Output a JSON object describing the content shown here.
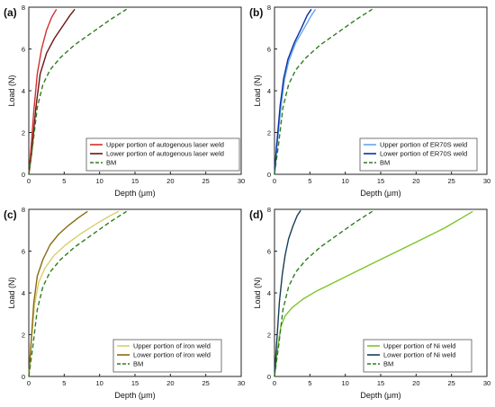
{
  "chart_data": [
    {
      "panel": "(a)",
      "type": "line",
      "xlabel": "Depth (μm)",
      "ylabel": "Load (N)",
      "xlim": [
        0,
        30
      ],
      "ylim": [
        0,
        8
      ],
      "xticks": [
        0,
        5,
        10,
        15,
        20,
        25,
        30
      ],
      "yticks": [
        0,
        2,
        4,
        6,
        8
      ],
      "grid": false,
      "legend_position": "bottom-right",
      "series": [
        {
          "name": "Upper portion of autogenous laser weld",
          "color": "#d32f2f",
          "dash": "solid",
          "x": [
            0,
            0.3,
            0.7,
            1.2,
            1.8,
            2.5,
            3.2,
            3.9
          ],
          "y": [
            0,
            1.2,
            3.0,
            4.8,
            6.0,
            6.9,
            7.5,
            7.9
          ]
        },
        {
          "name": "Lower portion of autogenous laser weld",
          "color": "#6b1414",
          "dash": "solid",
          "x": [
            0,
            0.4,
            1.0,
            1.6,
            2.5,
            3.6,
            4.8,
            5.8,
            6.5
          ],
          "y": [
            0,
            1.0,
            3.2,
            4.8,
            5.8,
            6.5,
            7.1,
            7.6,
            7.9
          ]
        },
        {
          "name": "BM",
          "color": "#2e7d1e",
          "dash": "dashed",
          "x": [
            0,
            0.6,
            1.2,
            2.0,
            3.0,
            4.5,
            6.5,
            9.0,
            11.5,
            13.8
          ],
          "y": [
            0,
            1.5,
            3.2,
            4.3,
            5.0,
            5.6,
            6.2,
            6.8,
            7.4,
            7.9
          ]
        }
      ]
    },
    {
      "panel": "(b)",
      "type": "line",
      "xlabel": "Depth (μm)",
      "ylabel": "Load (N)",
      "xlim": [
        0,
        30
      ],
      "ylim": [
        0,
        8
      ],
      "xticks": [
        0,
        5,
        10,
        15,
        20,
        25,
        30
      ],
      "yticks": [
        0,
        2,
        4,
        6,
        8
      ],
      "grid": false,
      "legend_position": "bottom-right",
      "series": [
        {
          "name": "Upper portion of ER70S weld",
          "color": "#64a8e6",
          "dash": "solid",
          "x": [
            0,
            0.4,
            0.9,
            1.4,
            2.0,
            3.0,
            4.2,
            5.2,
            5.8
          ],
          "y": [
            0,
            1.5,
            3.2,
            4.5,
            5.4,
            6.3,
            7.0,
            7.6,
            7.9
          ]
        },
        {
          "name": "Lower portion of ER70S weld",
          "color": "#0d2fa8",
          "dash": "solid",
          "x": [
            0,
            0.3,
            0.8,
            1.3,
            1.9,
            2.8,
            3.8,
            4.6,
            5.2
          ],
          "y": [
            0,
            1.4,
            3.3,
            4.6,
            5.5,
            6.3,
            7.0,
            7.6,
            7.9
          ]
        },
        {
          "name": "BM",
          "color": "#2e7d1e",
          "dash": "dashed",
          "x": [
            0,
            0.6,
            1.2,
            2.0,
            3.0,
            4.5,
            6.5,
            9.0,
            11.5,
            13.8
          ],
          "y": [
            0,
            1.5,
            3.2,
            4.3,
            5.0,
            5.6,
            6.2,
            6.8,
            7.4,
            7.9
          ]
        }
      ]
    },
    {
      "panel": "(c)",
      "type": "line",
      "xlabel": "Depth (μm)",
      "ylabel": "Load (N)",
      "xlim": [
        0,
        30
      ],
      "ylim": [
        0,
        8
      ],
      "xticks": [
        0,
        5,
        10,
        15,
        20,
        25,
        30
      ],
      "yticks": [
        0,
        2,
        4,
        6,
        8
      ],
      "grid": false,
      "legend_position": "bottom-right",
      "series": [
        {
          "name": "Upper portion of iron weld",
          "color": "#d6d06a",
          "dash": "solid",
          "x": [
            0,
            0.3,
            0.8,
            1.4,
            2.3,
            3.6,
            5.2,
            7.2,
            9.5,
            11.5,
            12.7
          ],
          "y": [
            0,
            1.5,
            3.4,
            4.5,
            5.2,
            5.8,
            6.3,
            6.8,
            7.3,
            7.7,
            7.9
          ]
        },
        {
          "name": "Lower portion of iron weld",
          "color": "#8a6a10",
          "dash": "solid",
          "x": [
            0,
            0.3,
            0.7,
            1.2,
            2.0,
            3.0,
            4.2,
            5.5,
            7.0,
            8.3
          ],
          "y": [
            0,
            1.5,
            3.5,
            4.8,
            5.6,
            6.3,
            6.8,
            7.2,
            7.6,
            7.9
          ]
        },
        {
          "name": "BM",
          "color": "#2e7d1e",
          "dash": "dashed",
          "x": [
            0,
            0.6,
            1.2,
            2.0,
            3.0,
            4.5,
            6.5,
            9.0,
            11.5,
            13.8
          ],
          "y": [
            0,
            1.5,
            3.2,
            4.3,
            5.0,
            5.6,
            6.2,
            6.8,
            7.4,
            7.9
          ]
        }
      ]
    },
    {
      "panel": "(d)",
      "type": "line",
      "xlabel": "Depth (μm)",
      "ylabel": "Load (N)",
      "xlim": [
        0,
        30
      ],
      "ylim": [
        0,
        8
      ],
      "xticks": [
        0,
        5,
        10,
        15,
        20,
        25,
        30
      ],
      "yticks": [
        0,
        2,
        4,
        6,
        8
      ],
      "grid": false,
      "legend_position": "bottom-right",
      "series": [
        {
          "name": "Upper portion of Ni weld",
          "color": "#7cc42a",
          "dash": "solid",
          "x": [
            0,
            0.4,
            0.9,
            1.5,
            2.5,
            4.0,
            6.0,
            9.0,
            12.0,
            15.0,
            18.0,
            21.0,
            24.0,
            26.5,
            28.0
          ],
          "y": [
            0,
            1.2,
            2.4,
            2.9,
            3.3,
            3.7,
            4.1,
            4.6,
            5.1,
            5.6,
            6.1,
            6.6,
            7.1,
            7.6,
            7.9
          ]
        },
        {
          "name": "Lower portion of Ni weld",
          "color": "#173d5a",
          "dash": "solid",
          "x": [
            0,
            0.3,
            0.7,
            1.1,
            1.5,
            2.0,
            2.6,
            3.2,
            3.7
          ],
          "y": [
            0,
            1.6,
            3.6,
            4.9,
            5.8,
            6.6,
            7.2,
            7.7,
            7.95
          ]
        },
        {
          "name": "BM",
          "color": "#2e7d1e",
          "dash": "dashed",
          "x": [
            0,
            0.6,
            1.2,
            2.0,
            3.0,
            4.5,
            6.5,
            9.0,
            11.5,
            13.8
          ],
          "y": [
            0,
            1.5,
            3.2,
            4.3,
            5.0,
            5.6,
            6.2,
            6.8,
            7.4,
            7.9
          ]
        }
      ]
    }
  ]
}
